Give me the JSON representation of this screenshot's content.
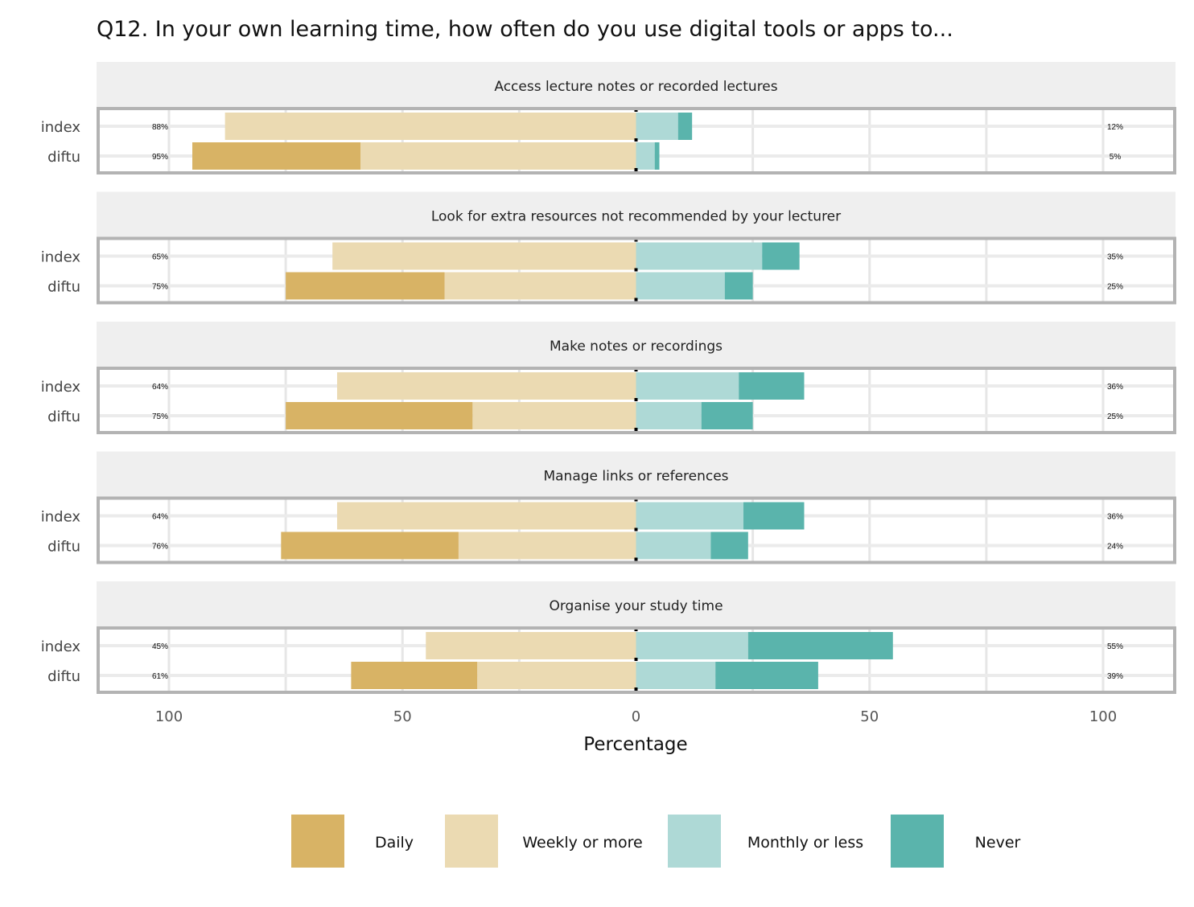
{
  "chart_data": {
    "type": "bar",
    "subtype": "diverging-stacked-bar",
    "title": "Q12. In your own learning time, how often do you use digital tools or apps to...",
    "xlabel": "Percentage",
    "xticks": [
      "100",
      "50",
      "0",
      "50",
      "100"
    ],
    "xlim": [
      -115,
      115
    ],
    "legend": {
      "position": "bottom",
      "items": [
        {
          "name": "Daily",
          "color": "#D8B365"
        },
        {
          "name": "Weekly or more",
          "color": "#EBDAB2"
        },
        {
          "name": "Monthly or less",
          "color": "#AED9D6"
        },
        {
          "name": "Never",
          "color": "#5AB4AC"
        }
      ]
    },
    "panels": [
      {
        "title": "Access lecture notes or recorded lectures",
        "rows": [
          {
            "label": "index",
            "left_label": "88%",
            "right_label": "12%",
            "Daily": 0,
            "Weekly or more": 88,
            "Monthly or less": 9,
            "Never": 3
          },
          {
            "label": "diftu",
            "left_label": "95%",
            "right_label": "5%",
            "Daily": 36,
            "Weekly or more": 59,
            "Monthly or less": 4,
            "Never": 1
          }
        ]
      },
      {
        "title": "Look for extra resources not recommended by your lecturer",
        "rows": [
          {
            "label": "index",
            "left_label": "65%",
            "right_label": "35%",
            "Daily": 0,
            "Weekly or more": 65,
            "Monthly or less": 27,
            "Never": 8
          },
          {
            "label": "diftu",
            "left_label": "75%",
            "right_label": "25%",
            "Daily": 34,
            "Weekly or more": 41,
            "Monthly or less": 19,
            "Never": 6
          }
        ]
      },
      {
        "title": "Make notes or recordings",
        "rows": [
          {
            "label": "index",
            "left_label": "64%",
            "right_label": "36%",
            "Daily": 0,
            "Weekly or more": 64,
            "Monthly or less": 22,
            "Never": 14
          },
          {
            "label": "diftu",
            "left_label": "75%",
            "right_label": "25%",
            "Daily": 40,
            "Weekly or more": 35,
            "Monthly or less": 14,
            "Never": 11
          }
        ]
      },
      {
        "title": "Manage links or references",
        "rows": [
          {
            "label": "index",
            "left_label": "64%",
            "right_label": "36%",
            "Daily": 0,
            "Weekly or more": 64,
            "Monthly or less": 23,
            "Never": 13
          },
          {
            "label": "diftu",
            "left_label": "76%",
            "right_label": "24%",
            "Daily": 38,
            "Weekly or more": 38,
            "Monthly or less": 16,
            "Never": 8
          }
        ]
      },
      {
        "title": "Organise your study time",
        "rows": [
          {
            "label": "index",
            "left_label": "45%",
            "right_label": "55%",
            "Daily": 0,
            "Weekly or more": 45,
            "Monthly or less": 24,
            "Never": 31
          },
          {
            "label": "diftu",
            "left_label": "61%",
            "right_label": "39%",
            "Daily": 27,
            "Weekly or more": 34,
            "Monthly or less": 17,
            "Never": 22
          }
        ]
      }
    ]
  }
}
